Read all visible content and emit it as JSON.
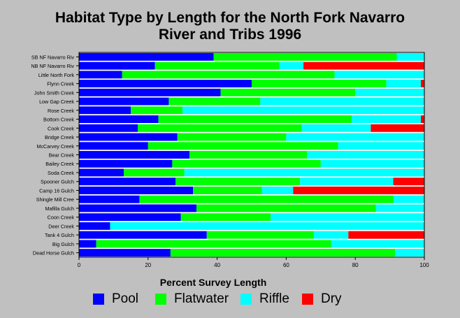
{
  "chart_data": {
    "type": "stacked-bar-horizontal",
    "title": "Habitat Type by Length for the North Fork Navarro River and Tribs 1996",
    "title_lines": [
      "Habitat Type by Length for the North Fork Navarro",
      "River and Tribs 1996"
    ],
    "xlabel": "Percent Survey Length",
    "xlim": [
      0,
      100
    ],
    "xticks": [
      0,
      20,
      40,
      60,
      80,
      100
    ],
    "grid": false,
    "legend_position": "bottom",
    "categories": [
      "SB NF Navarro Riv",
      "NB NF Navarro Riv",
      "Little North Fork",
      "Flynn Creek",
      "John Smith Creek",
      "Low Gap Creek",
      "Rose Creek",
      "Bottom Creek",
      "Cook Creek",
      "Bridge Creek",
      "McCarvey Creek",
      "Bear Creek",
      "Bailey Creek",
      "Soda Creek",
      "Spooner Gulch",
      "Camp 16 Gulch",
      "Shingle Mill Cree",
      "Mafilla Gulch",
      "Coon Creek",
      "Deer Creek",
      "Tank 4 Gulch",
      "Big Gulch",
      "Dead Horse Gulch"
    ],
    "series": [
      {
        "name": "Pool",
        "color": "#0000ff",
        "values": [
          39,
          22,
          12.5,
          50,
          41,
          26,
          15,
          23,
          17,
          28.5,
          20,
          32,
          27,
          13,
          28,
          33,
          17.5,
          34,
          29.5,
          9,
          37,
          5,
          26.5
        ]
      },
      {
        "name": "Flatwater",
        "color": "#00ff00",
        "values": [
          53,
          36,
          61.5,
          39,
          39,
          26.5,
          15,
          56,
          47.5,
          31.5,
          55,
          34,
          43,
          17.5,
          36,
          20,
          73.5,
          52,
          26,
          0,
          31,
          68,
          65
        ]
      },
      {
        "name": "Riffle",
        "color": "#00ffff",
        "values": [
          8,
          7,
          26,
          10,
          20,
          47.5,
          70,
          20,
          20,
          40,
          25,
          34,
          30,
          69.5,
          27,
          9,
          9,
          14,
          44.5,
          91,
          10,
          27,
          8.5
        ]
      },
      {
        "name": "Dry",
        "color": "#ff0000",
        "values": [
          0,
          35,
          0,
          1,
          0,
          0,
          0,
          1,
          15.5,
          0,
          0,
          0,
          0,
          0,
          9,
          38,
          0,
          0,
          0,
          0,
          22,
          0,
          0
        ]
      }
    ]
  }
}
